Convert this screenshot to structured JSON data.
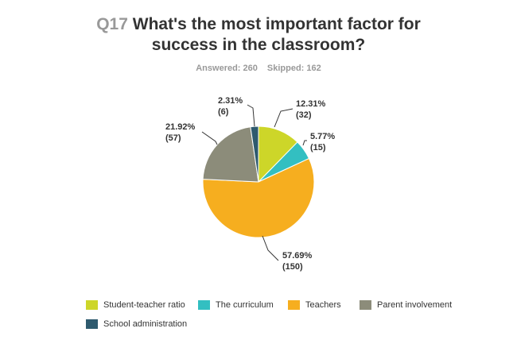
{
  "header": {
    "question_number": "Q17",
    "question_text": "What's the most important factor for success in the classroom?",
    "answered": "Answered: 260",
    "skipped": "Skipped: 162"
  },
  "chart_data": {
    "type": "pie",
    "title": "Q17 What's the most important factor for success in the classroom?",
    "slices": [
      {
        "name": "Student-teacher ratio",
        "percent": 12.31,
        "count": 32,
        "label_pct": "12.31%",
        "label_count": "(32)",
        "color": "#cdd629"
      },
      {
        "name": "The curriculum",
        "percent": 5.77,
        "count": 15,
        "label_pct": "5.77%",
        "label_count": "(15)",
        "color": "#33bfc1"
      },
      {
        "name": "Teachers",
        "percent": 57.69,
        "count": 150,
        "label_pct": "57.69%",
        "label_count": "(150)",
        "color": "#f6ae1f"
      },
      {
        "name": "Parent involvement",
        "percent": 21.92,
        "count": 57,
        "label_pct": "21.92%",
        "label_count": "(57)",
        "color": "#8c8c7a"
      },
      {
        "name": "School administration",
        "percent": 2.31,
        "count": 6,
        "label_pct": "2.31%",
        "label_count": "(6)",
        "color": "#2e5a6e"
      }
    ],
    "legend_position": "bottom"
  }
}
